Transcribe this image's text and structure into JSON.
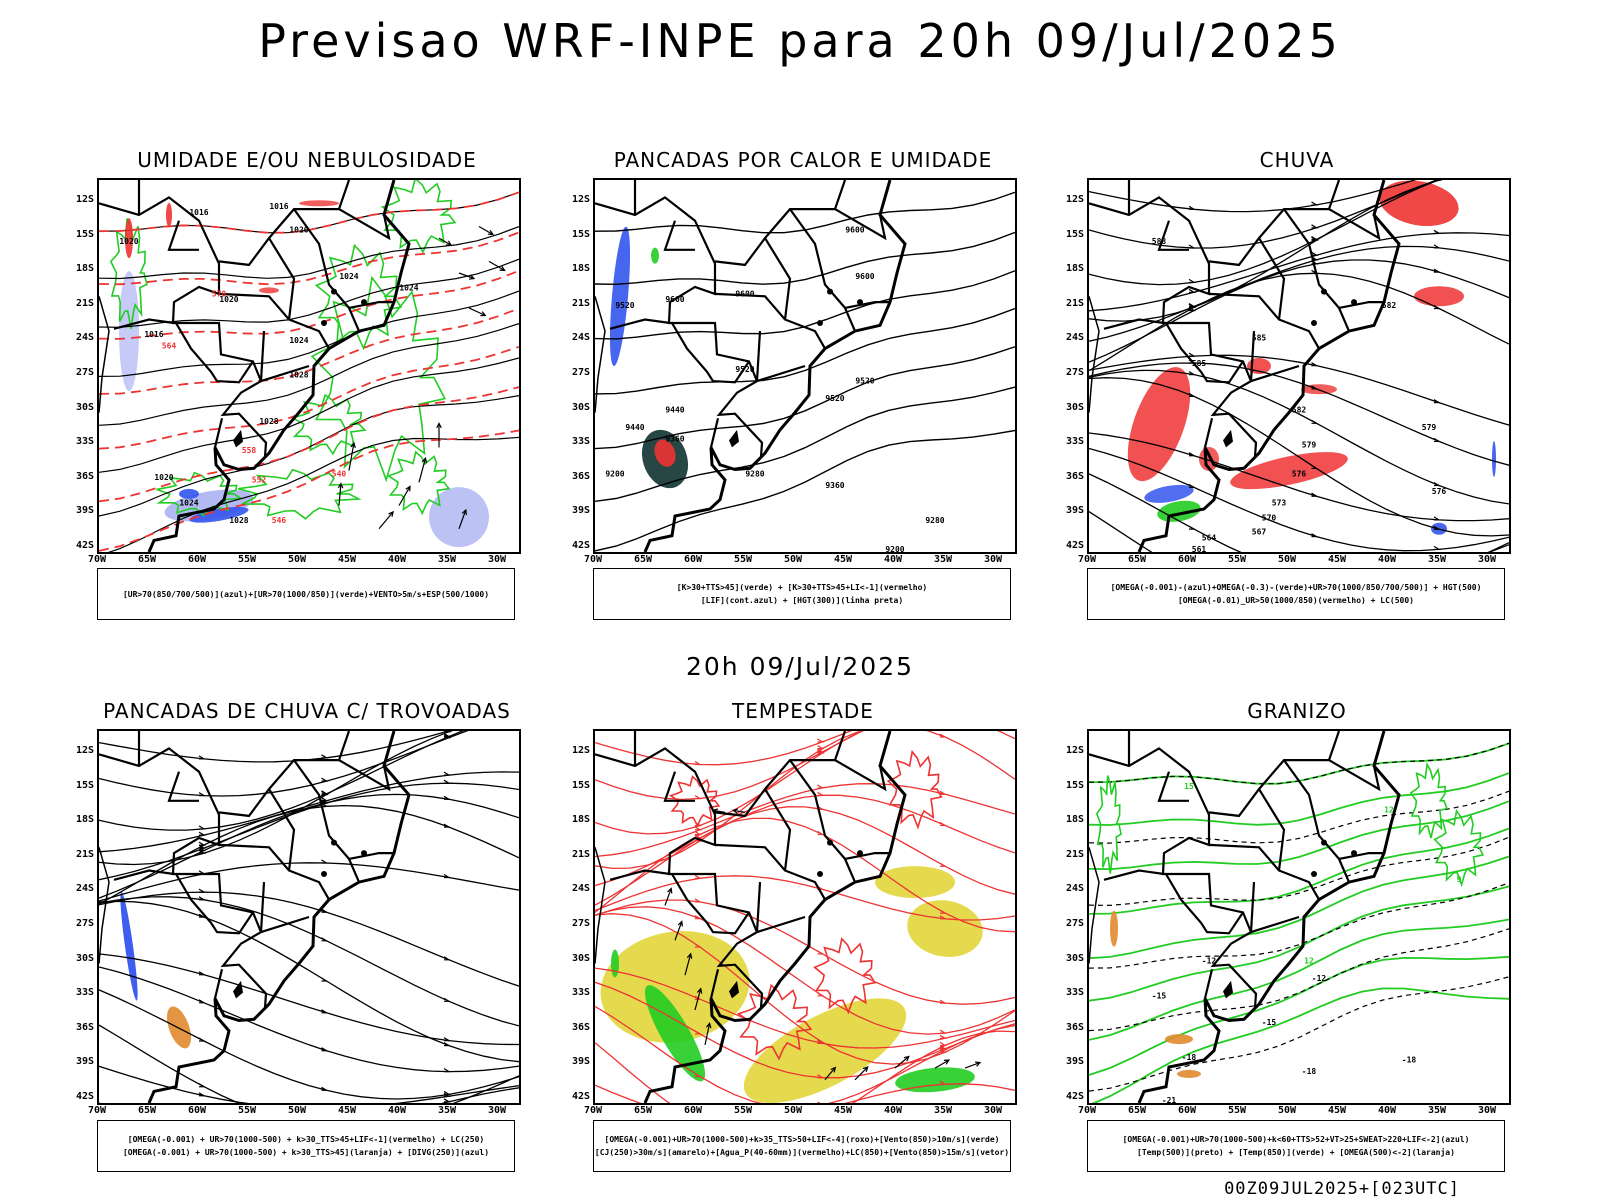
{
  "title": "Previsao WRF-INPE  para 20h 09/Jul/2025",
  "subtitle": "20h 09/Jul/2025",
  "footer": "00Z09JUL2025+[023UTC]",
  "lat_labels": [
    "12S",
    "15S",
    "18S",
    "21S",
    "24S",
    "27S",
    "30S",
    "33S",
    "36S",
    "39S",
    "42S"
  ],
  "lon_labels": [
    "70W",
    "65W",
    "60W",
    "55W",
    "50W",
    "45W",
    "40W",
    "35W",
    "30W"
  ],
  "panels": [
    {
      "title": "UMIDADE E/OU NEBULOSIDADE",
      "legend": [
        "[UR>70(850/700/500)](azul)+[UR>70(1000/850)](verde)+VENTO>5m/s+ESP(500/1000)"
      ],
      "labels": [
        "1016",
        "1016",
        "1020",
        "1020",
        "1024",
        "1024",
        "1024",
        "1028",
        "1028",
        "1020",
        "1016",
        "570",
        "564",
        "558",
        "552",
        "546",
        "540",
        "1020",
        "1024",
        "1028"
      ]
    },
    {
      "title": "PANCADAS POR CALOR E UMIDADE",
      "legend": [
        "[K>30+TTS>45](verde) + [K>30+TTS>45+LI<-1](vermelho)",
        "[LIF](cont.azul) + [HGT(300)](linha preta)"
      ],
      "labels": [
        "9600",
        "9600",
        "9600",
        "9600",
        "9520",
        "9520",
        "9520",
        "9440",
        "9440",
        "9360",
        "9280",
        "9280",
        "9200",
        "9200",
        "9520",
        "9360"
      ]
    },
    {
      "title": "CHUVA",
      "legend": [
        "[OMEGA(-0.001)-(azul)+OMEGA(-0.3)-(verde)+UR>70(1000/850/700/500)] + HGT(500)",
        "[OMEGA(-0.01)_UR>50(1000/850)(vermelho) + LC(500)"
      ],
      "labels": [
        "588",
        "585",
        "585",
        "582",
        "579",
        "576",
        "573",
        "570",
        "567",
        "564",
        "561",
        "582",
        "579",
        "576"
      ]
    },
    {
      "title": "PANCADAS DE CHUVA C/ TROVOADAS",
      "legend": [
        "[OMEGA(-0.001) + UR>70(1000-500) + k>30_TTS>45+LIF<-1](vermelho) + LC(250)",
        "[OMEGA(-0.001) + UR>70(1000-500) + k>30_TTS>45](laranja) + [DIVG(250)](azul)"
      ],
      "labels": []
    },
    {
      "title": "TEMPESTADE",
      "legend": [
        "[OMEGA(-0.001)+UR>70(1000-500)+k>35_TTS>50+LIF<-4](roxo)+[Vento(850)>10m/s](verde)",
        "[CJ(250)>30m/s](amarelo)+[Agua_P(40-60mm)](vermelho)+LC(850)+[Vento(850)>15m/s](vetor)"
      ],
      "labels": []
    },
    {
      "title": "GRANIZO",
      "legend": [
        "[OMEGA(-0.001)+UR>70(1000-500)+k<60+TTS>52+VT>25+SWEAT>220+LIF<-2](azul)",
        "[Temp(500)](preto) + [Temp(850)](verde) + [OMEGA(500)<-2](laranja)"
      ],
      "labels": [
        "-12",
        "-12",
        "-15",
        "-15",
        "-18",
        "-18",
        "-18",
        "-21",
        "15",
        "12",
        "9",
        "12"
      ]
    }
  ],
  "colors": {
    "blue": "#3355ee",
    "lightblue": "#9fa8f0",
    "green": "#22cc22",
    "darkgreen": "#1a3d3a",
    "red": "#ee3333",
    "orange": "#e08a30",
    "yellow": "#e2d63a",
    "purple": "#8a3acc"
  }
}
